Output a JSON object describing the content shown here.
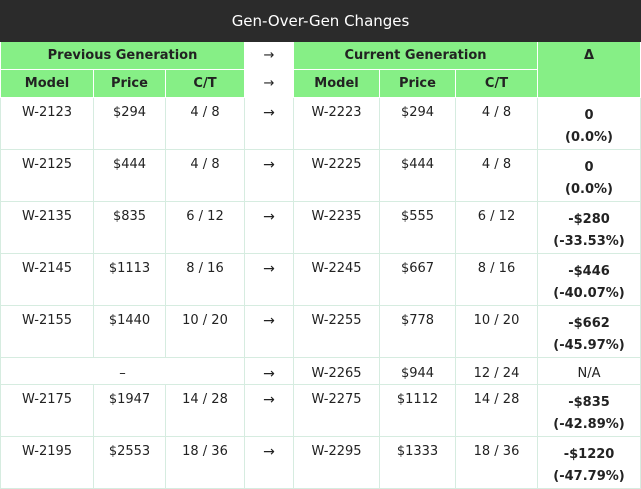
{
  "title": "Gen-Over-Gen Changes",
  "headers": {
    "previous_group": "Previous Generation",
    "current_group": "Current Generation",
    "delta": "Δ",
    "arrow": "→",
    "model": "Model",
    "price": "Price",
    "ct": "C/T"
  },
  "rows": [
    {
      "prev_model": "W-2123",
      "prev_price": "$294",
      "prev_ct": "4 / 8",
      "arrow": "→",
      "cur_model": "W-2223",
      "cur_price": "$294",
      "cur_ct": "4 / 8",
      "delta": "0",
      "delta_pct": "(0.0%)"
    },
    {
      "prev_model": "W-2125",
      "prev_price": "$444",
      "prev_ct": "4 / 8",
      "arrow": "→",
      "cur_model": "W-2225",
      "cur_price": "$444",
      "cur_ct": "4 / 8",
      "delta": "0",
      "delta_pct": "(0.0%)"
    },
    {
      "prev_model": "W-2135",
      "prev_price": "$835",
      "prev_ct": "6 / 12",
      "arrow": "→",
      "cur_model": "W-2235",
      "cur_price": "$555",
      "cur_ct": "6 / 12",
      "delta": "-$280",
      "delta_pct": "(-33.53%)"
    },
    {
      "prev_model": "W-2145",
      "prev_price": "$1113",
      "prev_ct": "8 / 16",
      "arrow": "→",
      "cur_model": "W-2245",
      "cur_price": "$667",
      "cur_ct": "8 / 16",
      "delta": "-$446",
      "delta_pct": "(-40.07%)"
    },
    {
      "prev_model": "W-2155",
      "prev_price": "$1440",
      "prev_ct": "10 / 20",
      "arrow": "→",
      "cur_model": "W-2255",
      "cur_price": "$778",
      "cur_ct": "10 / 20",
      "delta": "-$662",
      "delta_pct": "(-45.97%)"
    },
    {
      "prev_none": "–",
      "arrow": "→",
      "cur_model": "W-2265",
      "cur_price": "$944",
      "cur_ct": "12 / 24",
      "delta_na": "N/A"
    },
    {
      "prev_model": "W-2175",
      "prev_price": "$1947",
      "prev_ct": "14 / 28",
      "arrow": "→",
      "cur_model": "W-2275",
      "cur_price": "$1112",
      "cur_ct": "14 / 28",
      "delta": "-$835",
      "delta_pct": "(-42.89%)"
    },
    {
      "prev_model": "W-2195",
      "prev_price": "$2553",
      "prev_ct": "18 / 36",
      "arrow": "→",
      "cur_model": "W-2295",
      "cur_price": "$1333",
      "cur_ct": "18 / 36",
      "delta": "-$1220",
      "delta_pct": "(-47.79%)"
    }
  ],
  "colors": {
    "header_bg": "#2b2b2b",
    "group_bg": "#86ef86",
    "grid": "#d6ece0"
  }
}
